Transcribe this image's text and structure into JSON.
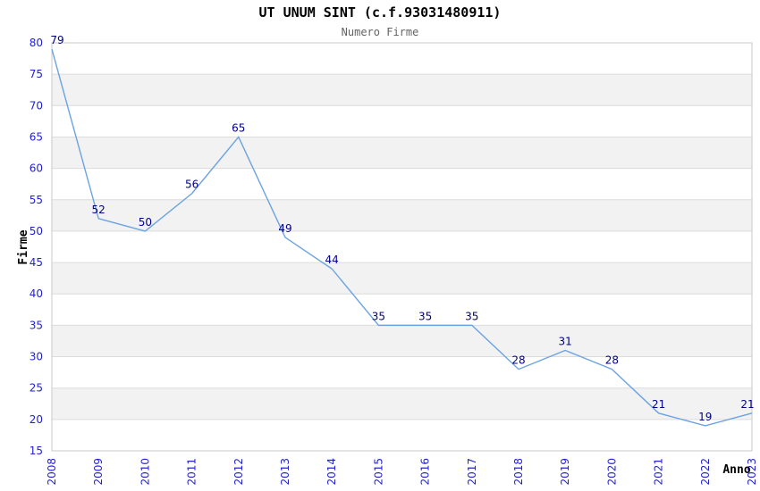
{
  "chart_data": {
    "type": "line",
    "title": "UT UNUM SINT (c.f.93031480911)",
    "subtitle": "Numero Firme",
    "xlabel": "Anno",
    "ylabel": "Firme",
    "categories": [
      "2008",
      "2009",
      "2010",
      "2011",
      "2012",
      "2013",
      "2014",
      "2015",
      "2016",
      "2017",
      "2018",
      "2019",
      "2020",
      "2021",
      "2022",
      "2023"
    ],
    "values": [
      79,
      52,
      50,
      56,
      65,
      49,
      44,
      35,
      35,
      35,
      28,
      31,
      28,
      21,
      19,
      21
    ],
    "data_labels_shown": true,
    "yticks": [
      15,
      20,
      25,
      30,
      35,
      40,
      45,
      50,
      55,
      60,
      65,
      70,
      75,
      80
    ],
    "ylim": [
      15,
      80
    ],
    "grid": true,
    "banded_background": true,
    "legend_position": "none",
    "colors": {
      "line": "#6ba3e2",
      "tick_label": "#2323cc",
      "data_label": "#00008b",
      "band": "#f2f2f2",
      "gridline": "#dcdcdc",
      "plot_border": "#c9c9c9",
      "title": "#000000",
      "subtitle": "#646464",
      "axis_title": "#000000"
    }
  }
}
